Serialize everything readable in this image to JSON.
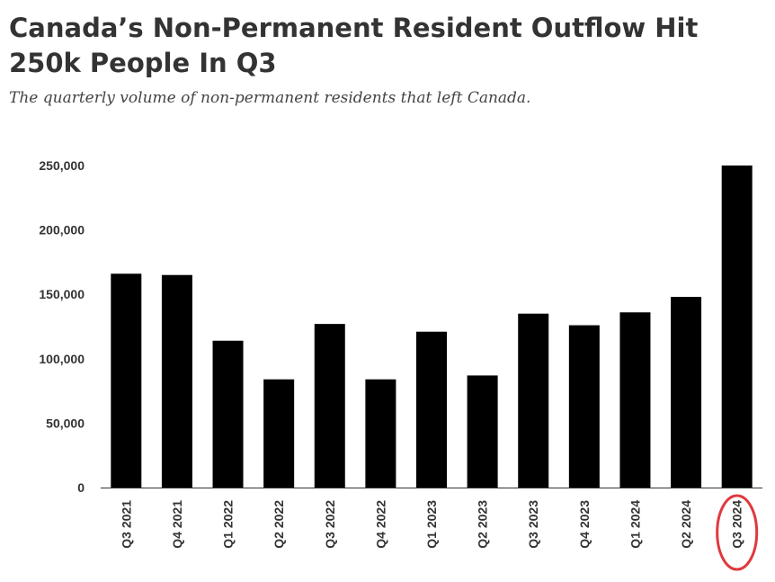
{
  "title": "Canada’s Non-Permanent Resident Outflow Hit 250k People In Q3",
  "subtitle": "The quarterly volume of non-permanent residents that left Canada.",
  "chart_data": {
    "type": "bar",
    "categories": [
      "Q3 2021",
      "Q4 2021",
      "Q1 2022",
      "Q2 2022",
      "Q3 2022",
      "Q4 2022",
      "Q1 2023",
      "Q2 2023",
      "Q3 2023",
      "Q4 2023",
      "Q1 2024",
      "Q2 2024",
      "Q3 2024"
    ],
    "values": [
      166000,
      165000,
      114000,
      84000,
      127000,
      84000,
      121000,
      87000,
      135000,
      126000,
      136000,
      148000,
      250000
    ],
    "ylim": [
      0,
      250000
    ],
    "yticks": [
      0,
      50000,
      100000,
      150000,
      200000,
      250000
    ],
    "ytick_labels": [
      "0",
      "50,000",
      "100,000",
      "150,000",
      "200,000",
      "250,000"
    ],
    "bar_color": "#000000",
    "highlight": {
      "category": "Q3 2024",
      "color": "#e0393e"
    },
    "grid": false
  }
}
